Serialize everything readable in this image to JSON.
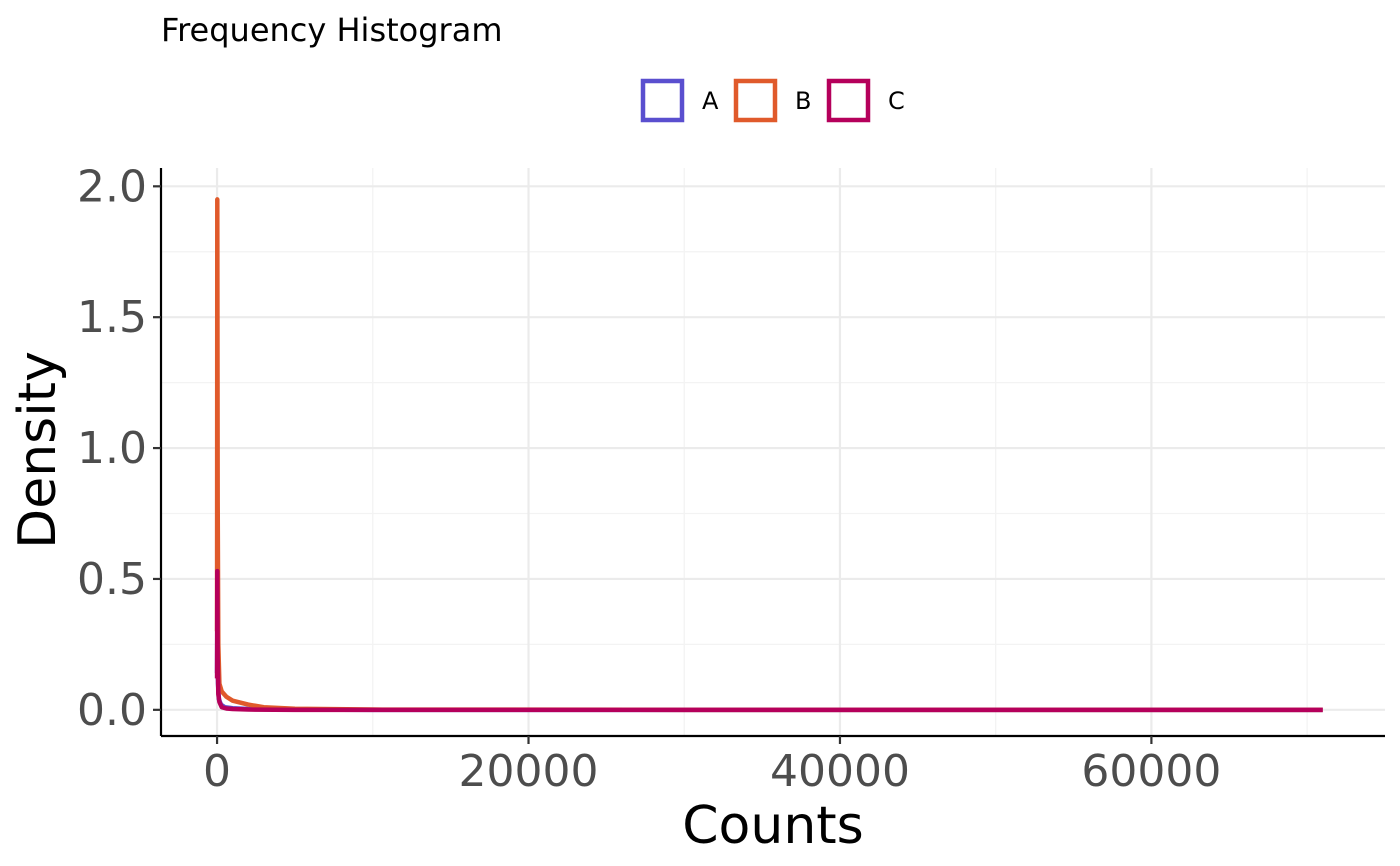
{
  "chart_data": {
    "type": "line",
    "title": "Frequency Histogram",
    "xlabel": "Counts",
    "ylabel": "Density",
    "xlim": [
      -3600,
      75000
    ],
    "ylim": [
      -0.1,
      2.07
    ],
    "x_ticks": [
      0,
      20000,
      40000,
      60000
    ],
    "x_tick_labels": [
      "0",
      "20000",
      "40000",
      "60000"
    ],
    "y_ticks": [
      0,
      0.5,
      1,
      1.5,
      2
    ],
    "y_tick_labels": [
      "0.0",
      "0.5",
      "1.0",
      "1.5",
      "2.0"
    ],
    "x_minor_ticks": [
      10000,
      30000,
      50000,
      70000
    ],
    "y_minor_ticks": [
      0.25,
      0.75,
      1.25,
      1.75
    ],
    "grid": true,
    "legend_position": "top",
    "series": [
      {
        "name": "A",
        "color": "#5a4fcf",
        "x": [
          0,
          20,
          60,
          120,
          250,
          500,
          1000,
          2000,
          4000,
          10000,
          30000,
          71000
        ],
        "y": [
          0.14,
          0.38,
          0.1,
          0.04,
          0.02,
          0.01,
          0.006,
          0.003,
          0.001,
          0,
          0,
          0
        ]
      },
      {
        "name": "B",
        "color": "#e05a2b",
        "x": [
          0,
          15,
          40,
          80,
          150,
          300,
          600,
          1000,
          2000,
          3000,
          5000,
          10000,
          30000,
          71000
        ],
        "y": [
          0.3,
          1.95,
          0.8,
          0.25,
          0.1,
          0.07,
          0.05,
          0.035,
          0.02,
          0.01,
          0.004,
          0.001,
          0,
          0
        ]
      },
      {
        "name": "C",
        "color": "#b5005b",
        "x": [
          0,
          15,
          40,
          80,
          150,
          300,
          600,
          1000,
          2000,
          5000,
          10000,
          30000,
          71000
        ],
        "y": [
          0.12,
          0.53,
          0.2,
          0.06,
          0.03,
          0.01,
          0.005,
          0.003,
          0.001,
          0,
          0,
          0,
          0
        ]
      }
    ]
  }
}
